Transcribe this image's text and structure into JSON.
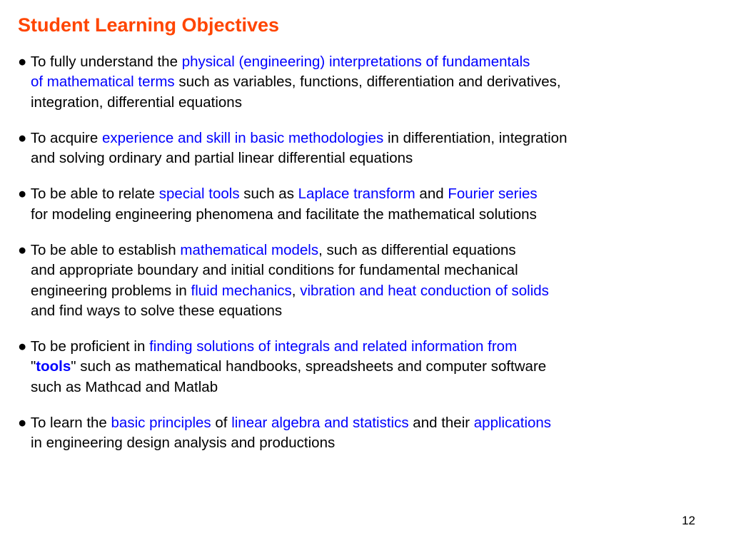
{
  "title": "Student Learning Objectives",
  "page_number": "12",
  "colors": {
    "title": "#ff4500",
    "highlight": "#0000ff",
    "text": "#000000",
    "background": "#ffffff"
  },
  "typography": {
    "title_fontsize": 27,
    "body_fontsize": 20.5,
    "font_family": "Arial, Helvetica, sans-serif"
  },
  "bullets": [
    {
      "segments": [
        {
          "text": "● To fully understand the ",
          "style": "plain"
        },
        {
          "text": "physical (engineering) interpretations of fundamentals",
          "style": "hl"
        }
      ],
      "cont": [
        [
          {
            "text": "of mathematical terms",
            "style": "hl"
          },
          {
            "text": " such as variables, functions, differentiation and derivatives,",
            "style": "plain"
          }
        ],
        [
          {
            "text": "integration, differential equations",
            "style": "plain"
          }
        ]
      ]
    },
    {
      "segments": [
        {
          "text": "● To acquire ",
          "style": "plain"
        },
        {
          "text": "experience and skill in basic methodologies",
          "style": "hl"
        },
        {
          "text": " in differentiation, integration",
          "style": "plain"
        }
      ],
      "cont": [
        [
          {
            "text": "and solving ordinary and partial linear differential equations",
            "style": "plain"
          }
        ]
      ]
    },
    {
      "segments": [
        {
          "text": "● To be able to relate ",
          "style": "plain"
        },
        {
          "text": "special tools",
          "style": "hl"
        },
        {
          "text": " such as ",
          "style": "plain"
        },
        {
          "text": "Laplace transform",
          "style": "hl"
        },
        {
          "text": " and ",
          "style": "plain"
        },
        {
          "text": "Fourier series",
          "style": "hl"
        }
      ],
      "cont": [
        [
          {
            "text": "for modeling engineering phenomena and facilitate the mathematical solutions",
            "style": "plain"
          }
        ]
      ]
    },
    {
      "segments": [
        {
          "text": "● To be able to establish ",
          "style": "plain"
        },
        {
          "text": "mathematical models",
          "style": "hl"
        },
        {
          "text": ", such as differential equations",
          "style": "plain"
        }
      ],
      "cont": [
        [
          {
            "text": "and appropriate boundary and initial conditions for fundamental mechanical",
            "style": "plain"
          }
        ],
        [
          {
            "text": "engineering problems in ",
            "style": "plain"
          },
          {
            "text": "fluid mechanics",
            "style": "hl"
          },
          {
            "text": ", ",
            "style": "plain"
          },
          {
            "text": "vibration and heat conduction of solids",
            "style": "hl"
          }
        ],
        [
          {
            "text": "and find ways to solve these equations",
            "style": "plain"
          }
        ]
      ]
    },
    {
      "segments": [
        {
          "text": "● To be proficient in ",
          "style": "plain"
        },
        {
          "text": "finding solutions of integrals and related information from",
          "style": "hl"
        }
      ],
      "cont": [
        [
          {
            "text": "\"",
            "style": "plain"
          },
          {
            "text": "tools",
            "style": "hl-bold"
          },
          {
            "text": "\" such as mathematical handbooks, spreadsheets and computer software",
            "style": "plain"
          }
        ],
        [
          {
            "text": "such as Mathcad and Matlab",
            "style": "plain"
          }
        ]
      ]
    },
    {
      "segments": [
        {
          "text": "● To learn the ",
          "style": "plain"
        },
        {
          "text": "basic principles",
          "style": "hl"
        },
        {
          "text": " of ",
          "style": "plain"
        },
        {
          "text": "linear algebra and statistics",
          "style": "hl"
        },
        {
          "text": " and their ",
          "style": "plain"
        },
        {
          "text": "applications",
          "style": "hl"
        }
      ],
      "cont": [
        [
          {
            "text": "in engineering design analysis and productions",
            "style": "plain"
          }
        ]
      ]
    }
  ]
}
